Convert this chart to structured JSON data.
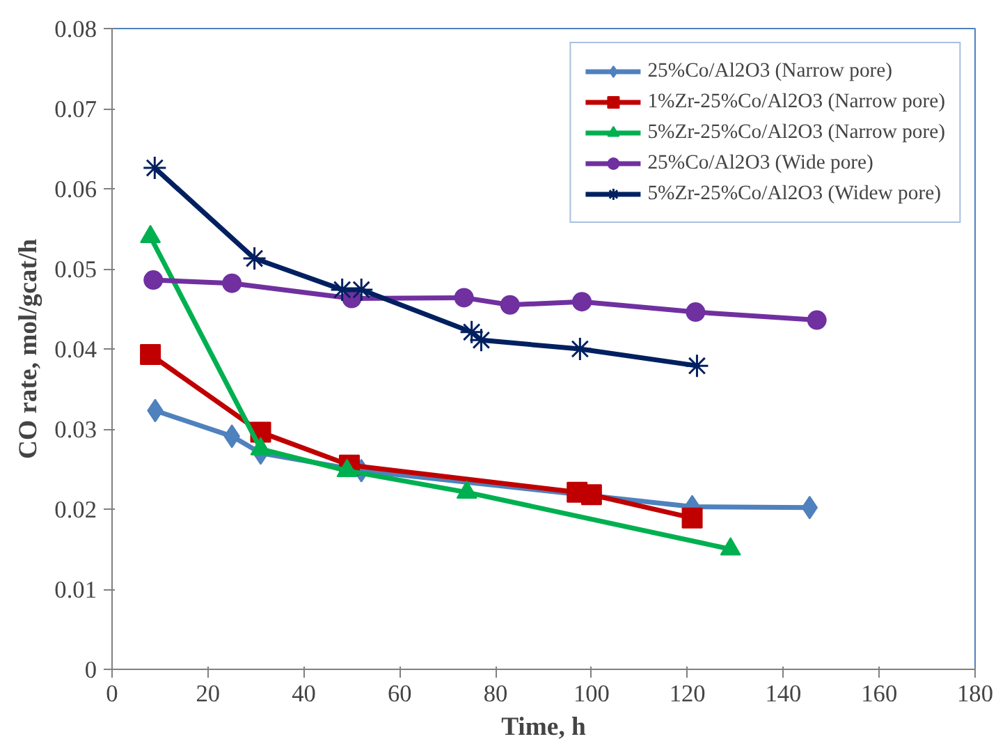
{
  "chart_data": {
    "type": "line",
    "xlabel": "Time, h",
    "ylabel": "CO rate, mol/gcat/h",
    "xlim": [
      0,
      180
    ],
    "xticks": [
      0,
      20,
      40,
      60,
      80,
      100,
      120,
      140,
      160,
      180
    ],
    "ylim": [
      0,
      0.08
    ],
    "yticks": [
      0,
      0.01,
      0.02,
      0.03,
      0.04,
      0.05,
      0.06,
      0.07,
      0.08
    ],
    "grid": false,
    "legend": "top right",
    "series": [
      {
        "name": "25%Co/Al2O3 (Narrow pore)",
        "color": "#4f81bd",
        "marker": "diamond",
        "x": [
          9,
          25,
          31,
          52,
          121,
          145.5
        ],
        "values": [
          0.0323,
          0.0291,
          0.027,
          0.0248,
          0.0203,
          0.0202
        ]
      },
      {
        "name": "1%Zr-25%Co/Al2O3 (Narrow pore)",
        "color": "#c00000",
        "marker": "square",
        "x": [
          8,
          31,
          49.5,
          97,
          100,
          121
        ],
        "values": [
          0.0393,
          0.0296,
          0.0255,
          0.0221,
          0.0218,
          0.0189
        ]
      },
      {
        "name": "5%Zr-25%Co/Al2O3 (Narrow pore)",
        "color": "#00b050",
        "marker": "triangle",
        "x": [
          8,
          31,
          49,
          74,
          129
        ],
        "values": [
          0.054,
          0.0275,
          0.0248,
          0.0221,
          0.015
        ]
      },
      {
        "name": "25%Co/Al2O3 (Wide pore)",
        "color": "#7030a0",
        "marker": "circle",
        "x": [
          8.6,
          25,
          50,
          73.4,
          83,
          98,
          121.7,
          147
        ],
        "values": [
          0.0486,
          0.0482,
          0.0463,
          0.0464,
          0.0455,
          0.0459,
          0.0446,
          0.0436
        ]
      },
      {
        "name": "5%Zr-25%Co/Al2O3 (Widew pore)",
        "color": "#002060",
        "marker": "cross",
        "x": [
          8.9,
          29.7,
          48,
          52,
          75,
          77,
          97.6,
          122
        ],
        "values": [
          0.0626,
          0.0513,
          0.0474,
          0.0474,
          0.0421,
          0.0411,
          0.04,
          0.0379
        ]
      }
    ]
  }
}
